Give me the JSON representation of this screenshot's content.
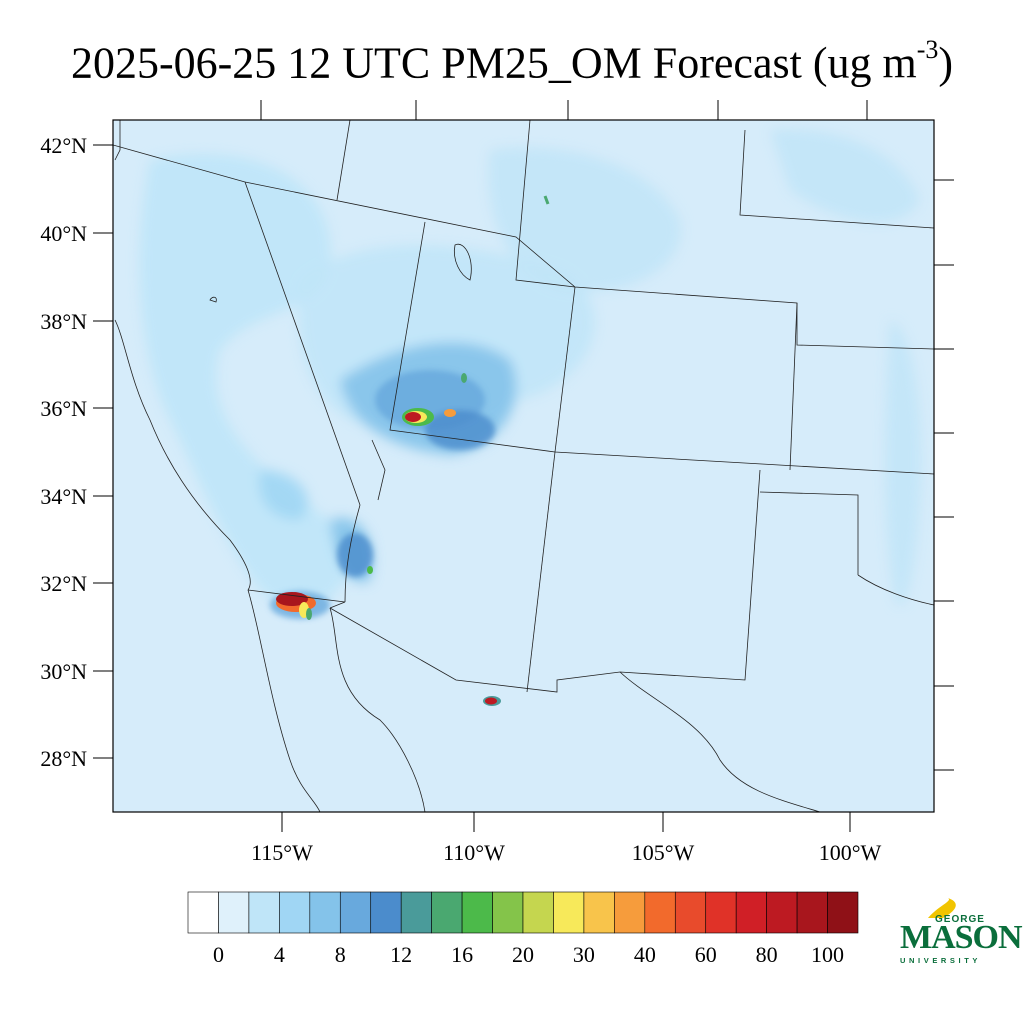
{
  "title": {
    "text": "2025-06-25 12 UTC PM25_OM Forecast (ug m",
    "sup": "-3",
    "close": ")"
  },
  "map": {
    "lat_labels": [
      {
        "lat": 42,
        "label": "42°N"
      },
      {
        "lat": 40,
        "label": "40°N"
      },
      {
        "lat": 38,
        "label": "38°N"
      },
      {
        "lat": 36,
        "label": "36°N"
      },
      {
        "lat": 34,
        "label": "34°N"
      },
      {
        "lat": 32,
        "label": "32°N"
      },
      {
        "lat": 30,
        "label": "30°N"
      },
      {
        "lat": 28,
        "label": "28°N"
      }
    ],
    "lon_labels": [
      {
        "lon": -115,
        "label": "115°W"
      },
      {
        "lon": -110,
        "label": "110°W"
      },
      {
        "lon": -105,
        "label": "105°W"
      },
      {
        "lon": -100,
        "label": "100°W"
      }
    ],
    "background_color": "#d6ecfa",
    "hotspots": [
      {
        "name": "northern-arizona-fire",
        "level": 100
      },
      {
        "name": "baja-border-fire",
        "level": 100
      },
      {
        "name": "chihuahua-fire",
        "level": 100
      }
    ]
  },
  "colorbar": {
    "colors": [
      "#ffffff",
      "#dff1fb",
      "#bfe5f8",
      "#a0d6f4",
      "#84c3ea",
      "#68a9dd",
      "#4b8ccc",
      "#4a9b9a",
      "#4aa870",
      "#4cba4a",
      "#84c44a",
      "#c5d64f",
      "#f7e95a",
      "#f8c44b",
      "#f69c3c",
      "#f26a2c",
      "#e84b2c",
      "#e03228",
      "#d01f26",
      "#bd1a22",
      "#a8161d",
      "#8f1117"
    ],
    "labels": [
      "0",
      "4",
      "8",
      "12",
      "16",
      "20",
      "30",
      "40",
      "60",
      "80",
      "100"
    ]
  },
  "logo": {
    "line1": "GEORGE",
    "line2": "MASON",
    "line3": "UNIVERSITY"
  }
}
